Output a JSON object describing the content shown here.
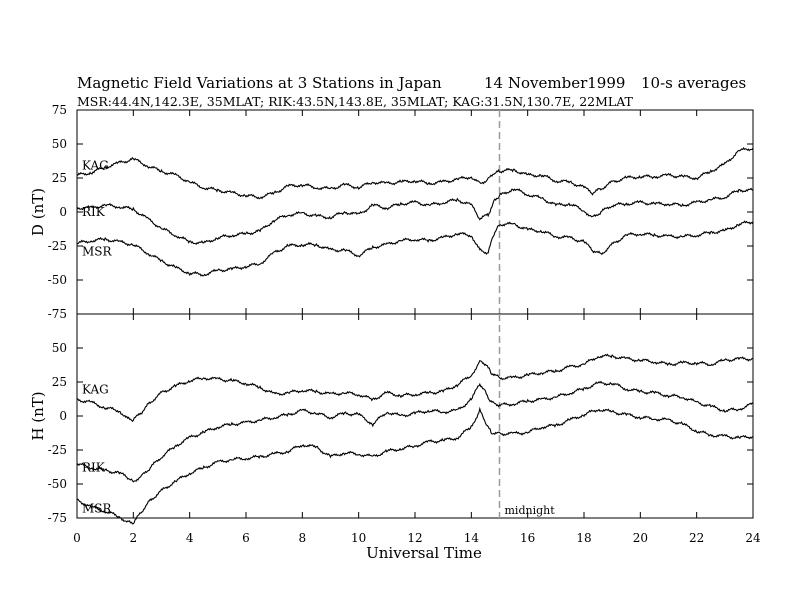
{
  "header": {
    "title": "Magnetic Field Variations at 3 Stations in Japan",
    "date": "14 November1999",
    "averaging": "10-s averages",
    "stations_line": "MSR:44.4N,142.3E, 35MLAT;  RIK:43.5N,143.8E, 35MLAT;  KAG:31.5N,130.7E, 22MLAT"
  },
  "annotation": {
    "midnight_label": "midnight",
    "midnight_ut": 15
  },
  "chart_data": [
    {
      "type": "line",
      "panel": "D",
      "ylabel": "D (nT)",
      "xlabel": "",
      "xlim": [
        0,
        24
      ],
      "ylim": [
        -75,
        75
      ],
      "xticks": [
        0,
        2,
        4,
        6,
        8,
        10,
        12,
        14,
        16,
        18,
        20,
        22,
        24
      ],
      "yticks": [
        -75,
        -50,
        -25,
        0,
        25,
        50,
        75
      ],
      "ytick_labels": [
        "-75",
        "-50",
        "-25",
        "0",
        "25",
        "50",
        "75"
      ],
      "grid": false,
      "series": [
        {
          "name": "KAG",
          "x": [
            0,
            0.5,
            1,
            1.5,
            2,
            2.5,
            3,
            3.5,
            4,
            4.5,
            5,
            5.5,
            6,
            6.5,
            7,
            7.5,
            8,
            8.5,
            9,
            9.5,
            10,
            10.5,
            11,
            11.5,
            12,
            12.5,
            13,
            13.5,
            14,
            14.3,
            14.6,
            14.8,
            15,
            15.5,
            16,
            16.5,
            17,
            17.5,
            18,
            18.3,
            18.6,
            19,
            19.5,
            20,
            20.5,
            21,
            21.5,
            22,
            22.5,
            23,
            23.5,
            24
          ],
          "y": [
            27,
            29,
            33,
            36,
            39,
            34,
            30,
            27,
            22,
            18,
            16,
            14,
            12,
            11,
            14,
            19,
            20,
            18,
            17,
            20,
            18,
            22,
            21,
            22,
            23,
            21,
            22,
            24,
            26,
            21,
            24,
            28,
            30,
            31,
            27,
            27,
            23,
            22,
            18,
            14,
            17,
            22,
            25,
            26,
            26,
            27,
            26,
            25,
            30,
            35,
            45,
            47
          ]
        },
        {
          "name": "RIK",
          "x": [
            0,
            0.5,
            1,
            1.5,
            2,
            2.5,
            3,
            3.5,
            4,
            4.5,
            5,
            5.5,
            6,
            6.5,
            7,
            7.5,
            8,
            8.5,
            9,
            9.5,
            10,
            10.5,
            11,
            11.5,
            12,
            12.5,
            13,
            13.5,
            14,
            14.3,
            14.6,
            14.8,
            15,
            15.5,
            16,
            16.5,
            17,
            17.5,
            18,
            18.3,
            18.6,
            19,
            19.5,
            20,
            20.5,
            21,
            21.5,
            22,
            22.5,
            23,
            23.5,
            24
          ],
          "y": [
            3,
            3,
            5,
            4,
            2,
            -5,
            -12,
            -17,
            -22,
            -23,
            -19,
            -17,
            -16,
            -14,
            -6,
            -2,
            -1,
            -3,
            -4,
            0,
            -2,
            5,
            3,
            6,
            7,
            5,
            7,
            9,
            5,
            -5,
            -2,
            8,
            12,
            17,
            13,
            10,
            5,
            6,
            1,
            -4,
            0,
            5,
            6,
            7,
            6,
            6,
            5,
            7,
            9,
            11,
            16,
            16
          ]
        },
        {
          "name": "MSR",
          "x": [
            0,
            0.5,
            1,
            1.5,
            2,
            2.5,
            3,
            3.5,
            4,
            4.5,
            5,
            5.5,
            6,
            6.5,
            7,
            7.5,
            8,
            8.5,
            9,
            9.5,
            10,
            10.5,
            11,
            11.5,
            12,
            12.5,
            13,
            13.5,
            14,
            14.3,
            14.6,
            14.8,
            15,
            15.5,
            16,
            16.5,
            17,
            17.5,
            18,
            18.3,
            18.6,
            19,
            19.5,
            20,
            20.5,
            21,
            21.5,
            22,
            22.5,
            23,
            23.5,
            24
          ],
          "y": [
            -23,
            -21,
            -20,
            -22,
            -24,
            -30,
            -36,
            -41,
            -45,
            -46,
            -43,
            -42,
            -40,
            -38,
            -30,
            -25,
            -24,
            -24,
            -28,
            -28,
            -32,
            -26,
            -24,
            -21,
            -20,
            -21,
            -19,
            -16,
            -17,
            -28,
            -30,
            -16,
            -9,
            -9,
            -13,
            -14,
            -18,
            -19,
            -22,
            -28,
            -31,
            -24,
            -17,
            -16,
            -17,
            -18,
            -18,
            -17,
            -15,
            -14,
            -9,
            -7
          ]
        }
      ]
    },
    {
      "type": "line",
      "panel": "H",
      "ylabel": "H (nT)",
      "xlabel": "Universal Time",
      "xlim": [
        0,
        24
      ],
      "ylim": [
        -75,
        75
      ],
      "xticks": [
        0,
        2,
        4,
        6,
        8,
        10,
        12,
        14,
        16,
        18,
        20,
        22,
        24
      ],
      "yticks": [
        -75,
        -50,
        -25,
        0,
        25,
        50
      ],
      "ytick_labels": [
        "-75",
        "-50",
        "-25",
        "0",
        "25",
        "50"
      ],
      "grid": false,
      "series": [
        {
          "name": "KAG",
          "x": [
            0,
            0.5,
            1,
            1.5,
            1.8,
            2,
            2.3,
            2.6,
            3,
            3.5,
            4,
            4.5,
            5,
            5.5,
            6,
            6.5,
            7,
            7.5,
            8,
            8.5,
            9,
            9.5,
            10,
            10.5,
            11,
            11.5,
            12,
            12.5,
            13,
            13.5,
            14,
            14.3,
            14.5,
            14.7,
            15,
            15.5,
            16,
            16.5,
            17,
            17.5,
            18,
            18.5,
            19,
            19.5,
            20,
            20.5,
            21,
            21.5,
            22,
            22.5,
            23,
            23.5,
            24
          ],
          "y": [
            12,
            10,
            6,
            4,
            -2,
            -3,
            3,
            10,
            17,
            22,
            26,
            28,
            27,
            26,
            24,
            21,
            16,
            17,
            19,
            18,
            16,
            17,
            16,
            12,
            17,
            15,
            16,
            17,
            18,
            23,
            30,
            40,
            38,
            32,
            28,
            28,
            30,
            32,
            33,
            36,
            38,
            44,
            44,
            42,
            41,
            40,
            38,
            39,
            39,
            38,
            41,
            42,
            42
          ]
        },
        {
          "name": "RIK",
          "x": [
            0,
            0.5,
            1,
            1.5,
            1.8,
            2,
            2.3,
            2.6,
            3,
            3.5,
            4,
            4.5,
            5,
            5.5,
            6,
            6.5,
            7,
            7.5,
            8,
            8.5,
            9,
            9.5,
            10,
            10.5,
            11,
            11.5,
            12,
            12.5,
            13,
            13.5,
            14,
            14.3,
            14.5,
            14.7,
            15,
            15.5,
            16,
            16.5,
            17,
            17.5,
            18,
            18.5,
            19,
            19.5,
            20,
            20.5,
            21,
            21.5,
            22,
            22.5,
            23,
            23.5,
            24
          ],
          "y": [
            -35,
            -38,
            -40,
            -42,
            -45,
            -48,
            -44,
            -38,
            -30,
            -22,
            -16,
            -12,
            -8,
            -6,
            -5,
            -3,
            -1,
            1,
            4,
            2,
            -1,
            2,
            1,
            -6,
            3,
            0,
            2,
            4,
            3,
            4,
            12,
            24,
            18,
            10,
            8,
            9,
            11,
            12,
            14,
            17,
            20,
            24,
            24,
            20,
            18,
            17,
            15,
            14,
            10,
            7,
            4,
            5,
            9
          ]
        },
        {
          "name": "MSR",
          "x": [
            0,
            0.5,
            1,
            1.5,
            1.8,
            2,
            2.3,
            2.6,
            3,
            3.5,
            4,
            4.5,
            5,
            5.5,
            6,
            6.5,
            7,
            7.5,
            8,
            8.5,
            9,
            9.5,
            10,
            10.5,
            11,
            11.5,
            12,
            12.5,
            13,
            13.5,
            14,
            14.3,
            14.5,
            14.7,
            15,
            15.5,
            16,
            16.5,
            17,
            17.5,
            18,
            18.5,
            19,
            19.5,
            20,
            20.5,
            21,
            21.5,
            22,
            22.5,
            23,
            23.5,
            24
          ],
          "y": [
            -62,
            -67,
            -70,
            -74,
            -78,
            -79,
            -70,
            -62,
            -55,
            -48,
            -42,
            -38,
            -34,
            -32,
            -31,
            -30,
            -28,
            -26,
            -21,
            -23,
            -30,
            -27,
            -28,
            -30,
            -26,
            -24,
            -22,
            -19,
            -18,
            -16,
            -8,
            4,
            -5,
            -12,
            -13,
            -13,
            -12,
            -8,
            -7,
            -3,
            1,
            5,
            3,
            1,
            -1,
            -2,
            -3,
            -6,
            -11,
            -14,
            -15,
            -16,
            -15
          ]
        }
      ]
    }
  ]
}
